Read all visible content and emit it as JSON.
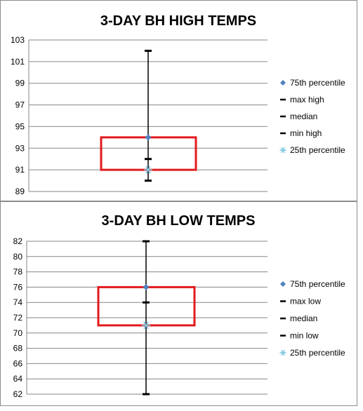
{
  "chart_data": [
    {
      "type": "box",
      "title": "3-DAY BH HIGH TEMPS",
      "ylim": [
        89,
        103
      ],
      "yticks": [
        89,
        91,
        93,
        95,
        97,
        99,
        101,
        103
      ],
      "grid": true,
      "legend_position": "right",
      "values": {
        "p75": 94,
        "max": 102,
        "median": 92,
        "min": 90,
        "p25": 91
      },
      "legend": [
        {
          "key": "p75",
          "label": "75th percentile",
          "marker": "diamond"
        },
        {
          "key": "max",
          "label": "max high",
          "marker": "dash"
        },
        {
          "key": "median",
          "label": "median",
          "marker": "dash"
        },
        {
          "key": "min",
          "label": "min high",
          "marker": "dash"
        },
        {
          "key": "p25",
          "label": "25th percentile",
          "marker": "star"
        }
      ],
      "colors": {
        "box": "#e31a1c",
        "whisker": "#000000",
        "p75": "#4f81bd",
        "p25": "#7ec8e3",
        "grid": "#868686"
      }
    },
    {
      "type": "box",
      "title": "3-DAY BH LOW TEMPS",
      "ylim": [
        62,
        82
      ],
      "yticks": [
        62,
        64,
        66,
        68,
        70,
        72,
        74,
        76,
        78,
        80,
        82
      ],
      "grid": true,
      "legend_position": "right",
      "values": {
        "p75": 76,
        "max": 82,
        "median": 74,
        "min": 62,
        "p25": 71
      },
      "legend": [
        {
          "key": "p75",
          "label": "75th percentile",
          "marker": "diamond"
        },
        {
          "key": "max",
          "label": "max low",
          "marker": "dash"
        },
        {
          "key": "median",
          "label": "median",
          "marker": "dash"
        },
        {
          "key": "min",
          "label": "min low",
          "marker": "dash"
        },
        {
          "key": "p25",
          "label": "25th percentile",
          "marker": "star"
        }
      ],
      "colors": {
        "box": "#e31a1c",
        "whisker": "#000000",
        "p75": "#4f81bd",
        "p25": "#7ec8e3",
        "grid": "#868686"
      }
    }
  ]
}
